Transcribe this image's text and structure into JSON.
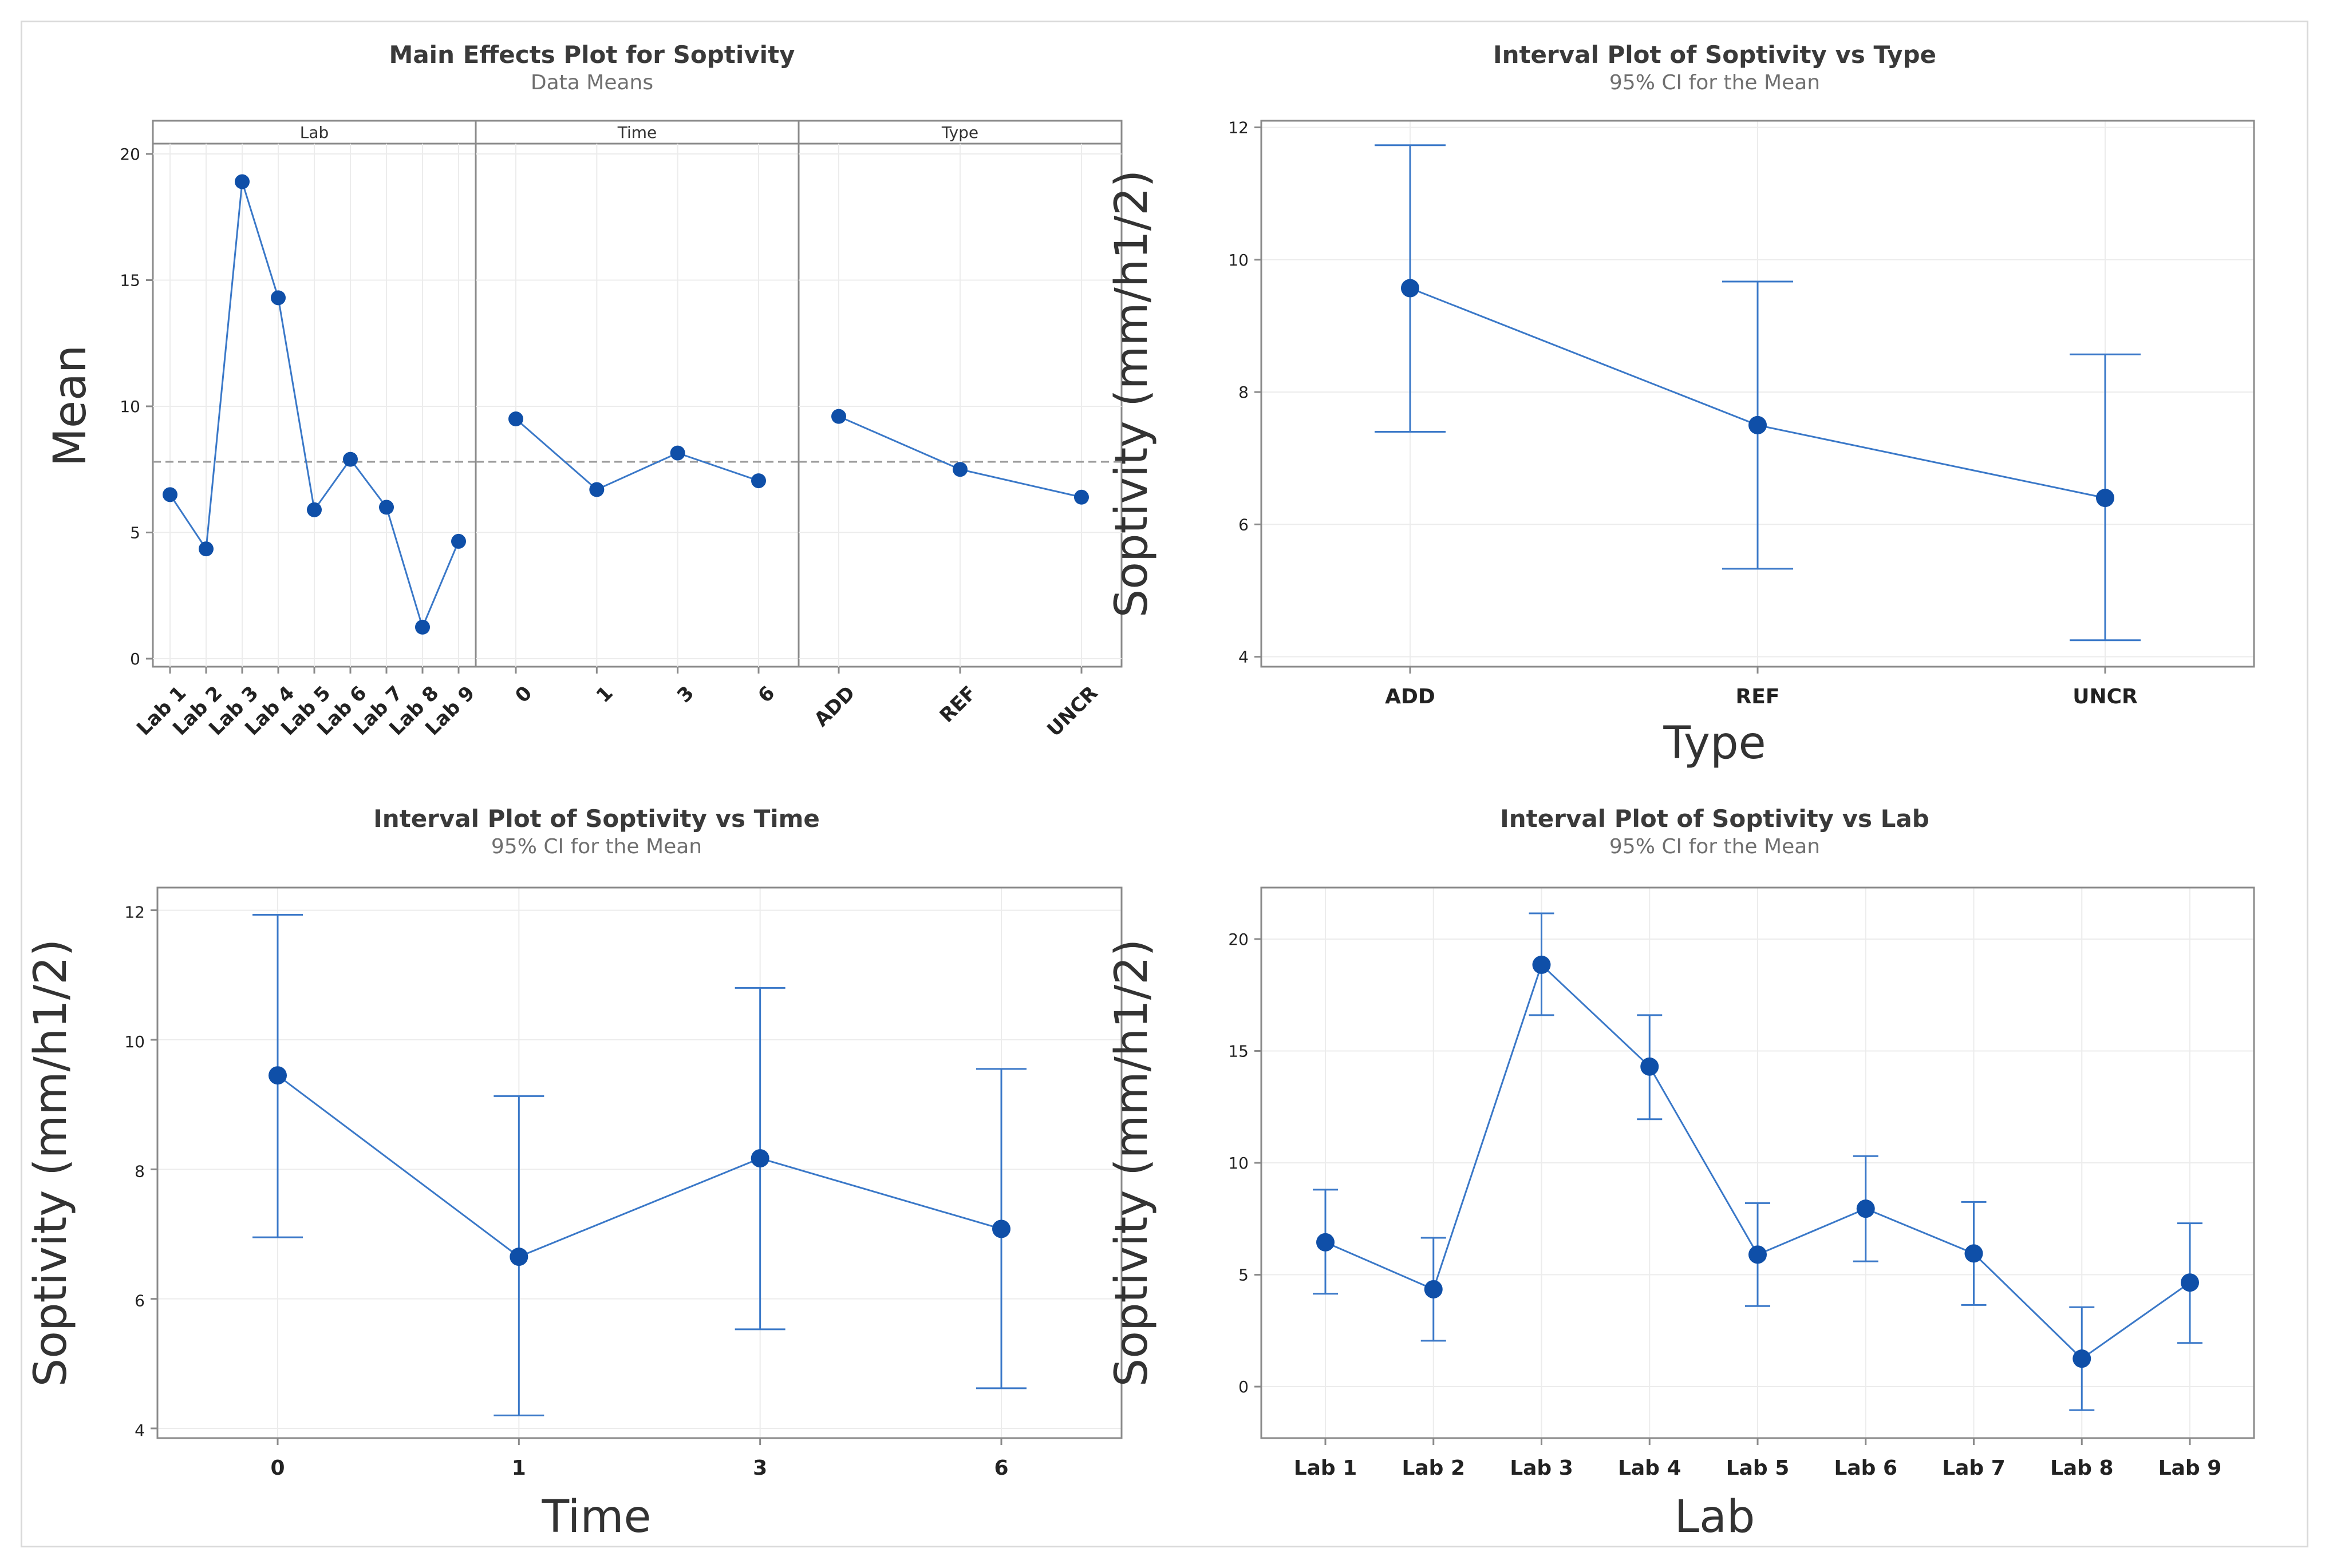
{
  "colors": {
    "series": "#3a78c8",
    "marker": "#0f4fa8",
    "grid": "#ececec",
    "axis": "#8a8a8a",
    "ref": "#9a9a9a"
  },
  "chart_data": [
    {
      "id": "main",
      "type": "line",
      "title": "Main Effects Plot for Soptivity",
      "subtitle": "Data Means",
      "ylabel": "Mean",
      "ylim": [
        0,
        20
      ],
      "yticks": [
        0,
        5,
        10,
        15,
        20
      ],
      "reference_mean": 7.8,
      "panels": [
        {
          "name": "Lab",
          "categories": [
            "Lab 1",
            "Lab 2",
            "Lab 3",
            "Lab 4",
            "Lab 5",
            "Lab 6",
            "Lab 7",
            "Lab 8",
            "Lab 9"
          ],
          "values": [
            6.5,
            4.35,
            18.9,
            14.3,
            5.9,
            7.9,
            6.0,
            1.25,
            4.65
          ]
        },
        {
          "name": "Time",
          "categories": [
            "0",
            "1",
            "3",
            "6"
          ],
          "values": [
            9.5,
            6.7,
            8.15,
            7.05
          ]
        },
        {
          "name": "Type",
          "categories": [
            "ADD",
            "REF",
            "UNCR"
          ],
          "values": [
            9.6,
            7.5,
            6.4
          ]
        }
      ]
    },
    {
      "id": "type",
      "type": "interval",
      "title": "Interval Plot of Soptivity vs Type",
      "subtitle": "95% CI for the Mean",
      "xlabel": "Type",
      "ylabel": "Soptivity (mm/h1/2)",
      "ylim": [
        3.85,
        12.1
      ],
      "yticks": [
        4,
        6,
        8,
        10,
        12
      ],
      "categories": [
        "ADD",
        "REF",
        "UNCR"
      ],
      "means": [
        9.57,
        7.5,
        6.4
      ],
      "lower": [
        7.4,
        5.33,
        4.25
      ],
      "upper": [
        11.73,
        9.67,
        8.57
      ]
    },
    {
      "id": "time",
      "type": "interval",
      "title": "Interval Plot of Soptivity vs Time",
      "subtitle": "95% CI for the Mean",
      "xlabel": "Time",
      "ylabel": "Soptivity (mm/h1/2)",
      "ylim": [
        3.85,
        12.35
      ],
      "yticks": [
        4,
        6,
        8,
        10,
        12
      ],
      "categories": [
        "0",
        "1",
        "3",
        "6"
      ],
      "means": [
        9.45,
        6.65,
        8.17,
        7.08
      ],
      "lower": [
        6.95,
        4.2,
        5.53,
        4.62
      ],
      "upper": [
        11.93,
        9.13,
        10.8,
        9.55
      ]
    },
    {
      "id": "lab",
      "type": "interval",
      "title": "Interval Plot of Soptivity vs Lab",
      "subtitle": "95% CI for the Mean",
      "xlabel": "Lab",
      "ylabel": "Soptivity (mm/h1/2)",
      "ylim": [
        -2.3,
        22.3
      ],
      "yticks": [
        0,
        5,
        10,
        15,
        20
      ],
      "categories": [
        "Lab 1",
        "Lab 2",
        "Lab 3",
        "Lab 4",
        "Lab 5",
        "Lab 6",
        "Lab 7",
        "Lab 8",
        "Lab 9"
      ],
      "means": [
        6.45,
        4.35,
        18.85,
        14.3,
        5.9,
        7.95,
        5.95,
        1.25,
        4.65
      ],
      "lower": [
        4.15,
        2.05,
        16.6,
        11.95,
        3.6,
        5.6,
        3.65,
        -1.05,
        1.95
      ],
      "upper": [
        8.8,
        6.65,
        21.15,
        16.6,
        8.2,
        10.3,
        8.25,
        3.55,
        7.3
      ]
    }
  ]
}
